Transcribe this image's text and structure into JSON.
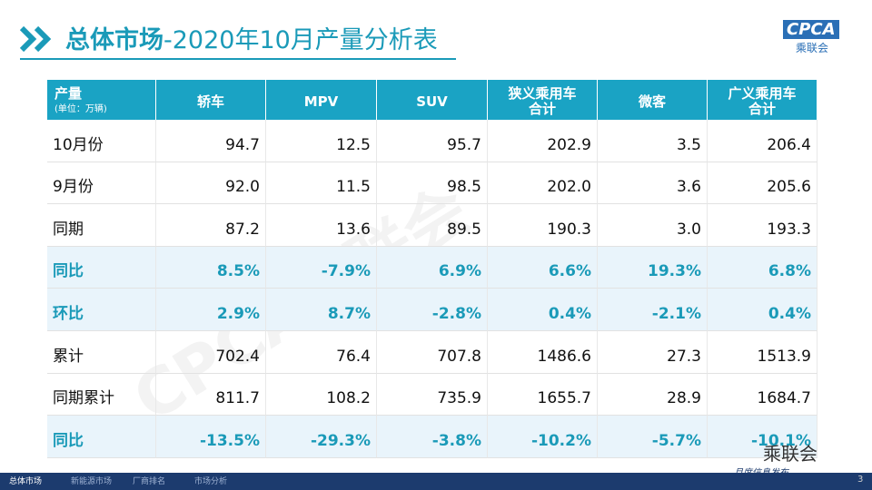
{
  "header": {
    "title_bold": "总体市场",
    "title_rest": "-2020年10月产量分析表",
    "logo": "CPCA",
    "logo_sub": "乘联会"
  },
  "table": {
    "columns": [
      [
        "产量",
        "(单位：万辆)"
      ],
      [
        "轿车"
      ],
      [
        "MPV"
      ],
      [
        "SUV"
      ],
      [
        "狭义乘用车",
        "合计"
      ],
      [
        "微客"
      ],
      [
        "广义乘用车",
        "合计"
      ]
    ],
    "rows": [
      {
        "label": "10月份",
        "values": [
          "94.7",
          "12.5",
          "95.7",
          "202.9",
          "3.5",
          "206.4"
        ],
        "emphasis": false
      },
      {
        "label": "9月份",
        "values": [
          "92.0",
          "11.5",
          "98.5",
          "202.0",
          "3.6",
          "205.6"
        ],
        "emphasis": false
      },
      {
        "label": "同期",
        "values": [
          "87.2",
          "13.6",
          "89.5",
          "190.3",
          "3.0",
          "193.3"
        ],
        "emphasis": false
      },
      {
        "label": "同比",
        "values": [
          "8.5%",
          "-7.9%",
          "6.9%",
          "6.6%",
          "19.3%",
          "6.8%"
        ],
        "emphasis": true
      },
      {
        "label": "环比",
        "values": [
          "2.9%",
          "8.7%",
          "-2.8%",
          "0.4%",
          "-2.1%",
          "0.4%"
        ],
        "emphasis": true
      },
      {
        "label": "累计",
        "values": [
          "702.4",
          "76.4",
          "707.8",
          "1486.6",
          "27.3",
          "1513.9"
        ],
        "emphasis": false
      },
      {
        "label": "同期累计",
        "values": [
          "811.7",
          "108.2",
          "735.9",
          "1655.7",
          "28.9",
          "1684.7"
        ],
        "emphasis": false
      },
      {
        "label": "同比",
        "values": [
          "-13.5%",
          "-29.3%",
          "-3.8%",
          "-10.2%",
          "-5.7%",
          "-10.1%"
        ],
        "emphasis": true
      }
    ]
  },
  "watermark": "CPCA乘联会",
  "footer": {
    "tabs": [
      "总体市场",
      "新能源市场",
      "厂商排名",
      "市场分析"
    ],
    "wechat": "乘联会",
    "tagline": "月度信息发布",
    "page": "3"
  }
}
